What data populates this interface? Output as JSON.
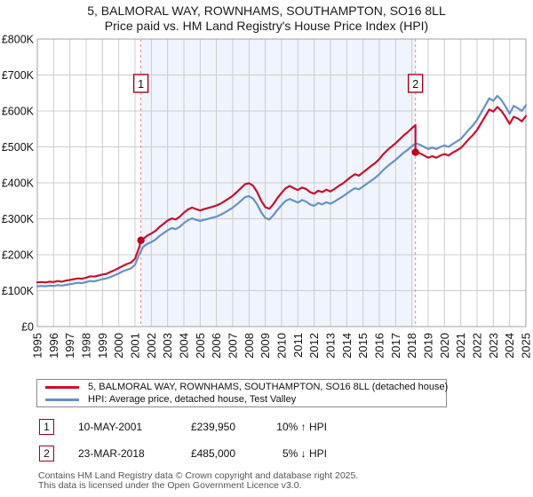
{
  "header": {
    "title": "5, BALMORAL WAY, ROWNHAMS, SOUTHAMPTON, SO16 8LL",
    "subtitle": "Price paid vs. HM Land Registry's House Price Index (HPI)"
  },
  "chart_data": {
    "type": "line",
    "title": "5, BALMORAL WAY, ROWNHAMS, SOUTHAMPTON, SO16 8LL",
    "subtitle": "Price paid vs. HM Land Registry's House Price Index (HPI)",
    "x_axis": {
      "min": 1995,
      "max": 2025,
      "tick_years": [
        1995,
        1996,
        1997,
        1998,
        1999,
        2000,
        2001,
        2002,
        2003,
        2004,
        2005,
        2006,
        2007,
        2008,
        2009,
        2010,
        2011,
        2012,
        2013,
        2014,
        2015,
        2016,
        2017,
        2018,
        2019,
        2020,
        2021,
        2022,
        2023,
        2024,
        2025
      ]
    },
    "y_axis": {
      "min": 0,
      "max": 800,
      "tick_step": 100,
      "unit": "GBP thousands",
      "tick_labels": [
        "£0",
        "£100K",
        "£200K",
        "£300K",
        "£400K",
        "£500K",
        "£600K",
        "£700K",
        "£800K"
      ]
    },
    "colors": {
      "red_series": "#c8102e",
      "blue_series": "#6691c8",
      "grid": "#cccccc",
      "border": "#a0a0a0",
      "sale_dash": "#ee8888",
      "sale_dot": "#c00020",
      "marker_box_border": "#a50016",
      "shading": "#f0f4fc"
    },
    "legend_position": "bottom",
    "grid": true,
    "series": [
      {
        "id": "price-paid",
        "name": "5, BALMORAL WAY, ROWNHAMS, SOUTHAMPTON, SO16 8LL (detached house)",
        "color": "#c8102e",
        "x": [
          1995,
          1995.25,
          1995.5,
          1995.75,
          1996,
          1996.25,
          1996.5,
          1996.75,
          1997,
          1997.25,
          1997.5,
          1997.75,
          1998,
          1998.25,
          1998.5,
          1998.75,
          1999,
          1999.25,
          1999.5,
          1999.75,
          2000,
          2000.25,
          2000.5,
          2000.75,
          2001,
          2001.25,
          2001.36,
          2001.5,
          2001.75,
          2002,
          2002.25,
          2002.5,
          2002.75,
          2003,
          2003.25,
          2003.5,
          2003.75,
          2004,
          2004.25,
          2004.5,
          2004.75,
          2005,
          2005.25,
          2005.5,
          2005.75,
          2006,
          2006.25,
          2006.5,
          2006.75,
          2007,
          2007.25,
          2007.5,
          2007.75,
          2008,
          2008.25,
          2008.5,
          2008.75,
          2009,
          2009.25,
          2009.5,
          2009.75,
          2010,
          2010.25,
          2010.5,
          2010.75,
          2011,
          2011.25,
          2011.5,
          2011.75,
          2012,
          2012.25,
          2012.5,
          2012.75,
          2013,
          2013.25,
          2013.5,
          2013.75,
          2014,
          2014.25,
          2014.5,
          2014.75,
          2015,
          2015.25,
          2015.5,
          2015.75,
          2016,
          2016.25,
          2016.5,
          2016.75,
          2017,
          2017.25,
          2017.5,
          2017.75,
          2018,
          2018.22,
          2018.22,
          2018.25,
          2018.5,
          2018.75,
          2019,
          2019.25,
          2019.5,
          2019.75,
          2020,
          2020.25,
          2020.5,
          2020.75,
          2021,
          2021.25,
          2021.5,
          2021.75,
          2022,
          2022.25,
          2022.5,
          2022.75,
          2023,
          2023.25,
          2023.5,
          2023.75,
          2024,
          2024.25,
          2024.5,
          2024.75,
          2025
        ],
        "values": [
          123,
          124,
          123,
          125,
          124,
          127,
          125,
          128,
          130,
          132,
          134,
          133,
          136,
          140,
          139,
          142,
          145,
          147,
          152,
          157,
          163,
          169,
          174,
          178,
          189,
          220,
          240,
          244,
          253,
          259,
          266,
          277,
          286,
          295,
          301,
          298,
          306,
          317,
          326,
          331,
          327,
          323,
          327,
          330,
          333,
          337,
          342,
          349,
          356,
          364,
          374,
          385,
          396,
          399,
          392,
          374,
          350,
          332,
          328,
          341,
          358,
          372,
          385,
          391,
          385,
          380,
          387,
          383,
          374,
          370,
          378,
          374,
          381,
          376,
          383,
          391,
          398,
          407,
          416,
          424,
          420,
          429,
          438,
          447,
          455,
          466,
          480,
          491,
          501,
          510,
          521,
          532,
          541,
          552,
          561,
          485,
          486,
          482,
          476,
          470,
          474,
          470,
          476,
          480,
          476,
          484,
          490,
          497,
          509,
          522,
          533,
          547,
          566,
          585,
          604,
          598,
          611,
          600,
          583,
          564,
          584,
          579,
          571,
          586
        ]
      },
      {
        "id": "hpi",
        "name": "HPI: Average price, detached house, Test Valley",
        "color": "#6691c8",
        "x": [
          1995,
          1995.25,
          1995.5,
          1995.75,
          1996,
          1996.25,
          1996.5,
          1996.75,
          1997,
          1997.25,
          1997.5,
          1997.75,
          1998,
          1998.25,
          1998.5,
          1998.75,
          1999,
          1999.25,
          1999.5,
          1999.75,
          2000,
          2000.25,
          2000.5,
          2000.75,
          2001,
          2001.25,
          2001.5,
          2001.75,
          2002,
          2002.25,
          2002.5,
          2002.75,
          2003,
          2003.25,
          2003.5,
          2003.75,
          2004,
          2004.25,
          2004.5,
          2004.75,
          2005,
          2005.25,
          2005.5,
          2005.75,
          2006,
          2006.25,
          2006.5,
          2006.75,
          2007,
          2007.25,
          2007.5,
          2007.75,
          2008,
          2008.25,
          2008.5,
          2008.75,
          2009,
          2009.25,
          2009.5,
          2009.75,
          2010,
          2010.25,
          2010.5,
          2010.75,
          2011,
          2011.25,
          2011.5,
          2011.75,
          2012,
          2012.25,
          2012.5,
          2012.75,
          2013,
          2013.25,
          2013.5,
          2013.75,
          2014,
          2014.25,
          2014.5,
          2014.75,
          2015,
          2015.25,
          2015.5,
          2015.75,
          2016,
          2016.25,
          2016.5,
          2016.75,
          2017,
          2017.25,
          2017.5,
          2017.75,
          2018,
          2018.25,
          2018.5,
          2018.75,
          2019,
          2019.25,
          2019.5,
          2019.75,
          2020,
          2020.25,
          2020.5,
          2020.75,
          2021,
          2021.25,
          2021.5,
          2021.75,
          2022,
          2022.25,
          2022.5,
          2022.75,
          2023,
          2023.25,
          2023.5,
          2023.75,
          2024,
          2024.25,
          2024.5,
          2024.75,
          2025
        ],
        "values": [
          112,
          113,
          112,
          114,
          113,
          115,
          114,
          116,
          118,
          120,
          122,
          121,
          124,
          127,
          126,
          129,
          132,
          134,
          138,
          143,
          148,
          154,
          158,
          162,
          172,
          200,
          222,
          230,
          235,
          242,
          252,
          260,
          268,
          274,
          271,
          278,
          288,
          296,
          301,
          297,
          294,
          297,
          300,
          303,
          306,
          311,
          317,
          324,
          331,
          340,
          350,
          360,
          363,
          356,
          340,
          318,
          302,
          298,
          310,
          325,
          338,
          350,
          355,
          350,
          345,
          352,
          348,
          340,
          336,
          344,
          340,
          346,
          342,
          348,
          355,
          362,
          370,
          378,
          385,
          382,
          390,
          398,
          406,
          414,
          424,
          436,
          446,
          455,
          464,
          474,
          484,
          492,
          502,
          510,
          506,
          500,
          494,
          498,
          494,
          500,
          504,
          500,
          508,
          515,
          522,
          535,
          548,
          560,
          575,
          595,
          615,
          635,
          628,
          642,
          630,
          612,
          592,
          614,
          608,
          600,
          616
        ]
      }
    ],
    "sales": [
      {
        "label": "1",
        "x": 2001.36,
        "y": 239.95
      },
      {
        "label": "2",
        "x": 2018.22,
        "y": 485
      }
    ],
    "shaded_region": {
      "from": 2001.36,
      "to": 2018.22,
      "color": "#f0f4fc"
    }
  },
  "legend": {
    "entries": [
      {
        "label": "5, BALMORAL WAY, ROWNHAMS, SOUTHAMPTON, SO16 8LL (detached house)",
        "color": "#c8102e"
      },
      {
        "label": "HPI: Average price, detached house, Test Valley",
        "color": "#6691c8"
      }
    ]
  },
  "annotations": {
    "rows": [
      {
        "num": "1",
        "date": "10-MAY-2001",
        "price": "£239,950",
        "hpi": "10% ↑ HPI"
      },
      {
        "num": "2",
        "date": "23-MAR-2018",
        "price": "£485,000",
        "hpi": "5% ↓ HPI"
      }
    ]
  },
  "footer": {
    "line1": "Contains HM Land Registry data © Crown copyright and database right 2025.",
    "line2": "This data is licensed under the Open Government Licence v3.0."
  }
}
